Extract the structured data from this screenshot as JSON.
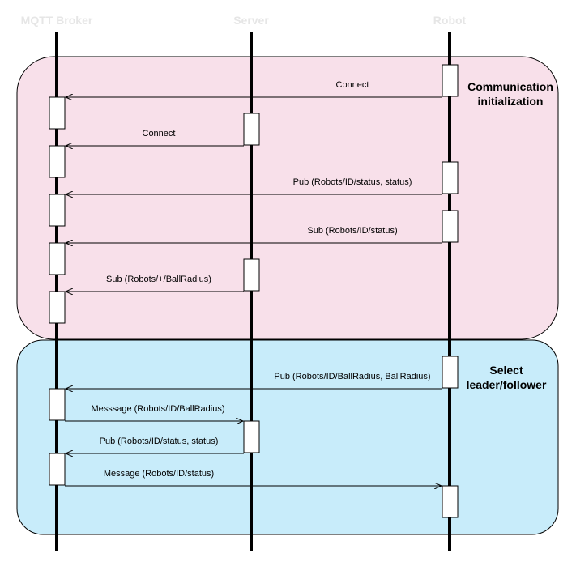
{
  "participants": [
    {
      "id": "broker",
      "label": "MQTT Broker"
    },
    {
      "id": "server",
      "label": "Server"
    },
    {
      "id": "robot",
      "label": "Robot"
    }
  ],
  "phases": [
    {
      "title_line1": "Communication",
      "title_line2": "initialization",
      "color": "#f8e0ea"
    },
    {
      "title_line1": "Select",
      "title_line2": "leader/follower",
      "color": "#c8ecfa"
    }
  ],
  "messages": [
    {
      "label": "Connect"
    },
    {
      "label": "Connect"
    },
    {
      "label": "Pub (Robots/ID/status, status)"
    },
    {
      "label": "Sub (Robots/ID/status)"
    },
    {
      "label": "Sub (Robots/+/BallRadius)"
    },
    {
      "label": "Pub (Robots/ID/BallRadius, BallRadius)"
    },
    {
      "label": "Messsage (Robots/ID/BallRadius)"
    },
    {
      "label": "Pub (Robots/ID/status, status)"
    },
    {
      "label": "Message (Robots/ID/status)"
    }
  ]
}
